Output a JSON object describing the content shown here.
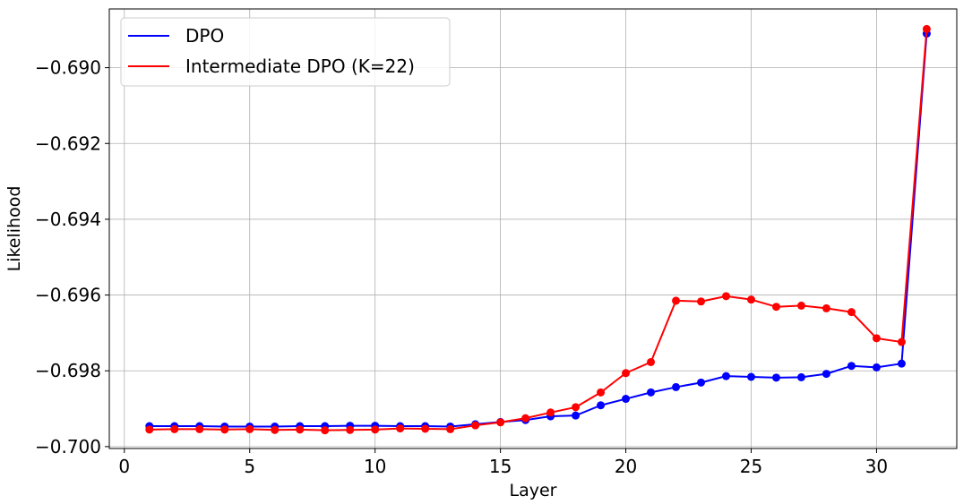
{
  "chart_data": {
    "type": "line",
    "title": "",
    "xlabel": "Layer",
    "ylabel": "Likelihood",
    "xlim": [
      -0.6,
      33.2
    ],
    "ylim": [
      -0.70005,
      -0.68845
    ],
    "xticks": [
      0,
      5,
      10,
      15,
      20,
      25,
      30
    ],
    "xtick_labels": [
      "0",
      "5",
      "10",
      "15",
      "20",
      "25",
      "30"
    ],
    "yticks": [
      -0.7,
      -0.698,
      -0.696,
      -0.694,
      -0.692,
      -0.69
    ],
    "ytick_labels": [
      "−0.700",
      "−0.698",
      "−0.696",
      "−0.694",
      "−0.692",
      "−0.690"
    ],
    "grid": true,
    "legend_position": "top-left",
    "x": [
      1,
      2,
      3,
      4,
      5,
      6,
      7,
      8,
      9,
      10,
      11,
      12,
      13,
      14,
      15,
      16,
      17,
      18,
      19,
      20,
      21,
      22,
      23,
      24,
      25,
      26,
      27,
      28,
      29,
      30,
      31,
      32
    ],
    "series": [
      {
        "name": "DPO",
        "color": "#0000ff",
        "values": [
          -0.69946,
          -0.69946,
          -0.69946,
          -0.69947,
          -0.69947,
          -0.69947,
          -0.69946,
          -0.69946,
          -0.69945,
          -0.69945,
          -0.69946,
          -0.69946,
          -0.69947,
          -0.69941,
          -0.69935,
          -0.6993,
          -0.6992,
          -0.69918,
          -0.69891,
          -0.69874,
          -0.69857,
          -0.69843,
          -0.69831,
          -0.69814,
          -0.69816,
          -0.69818,
          -0.69817,
          -0.69808,
          -0.69787,
          -0.69791,
          -0.69781,
          -0.6891
        ]
      },
      {
        "name": "Intermediate DPO (K=22)",
        "color": "#ff0000",
        "values": [
          -0.69955,
          -0.69954,
          -0.69954,
          -0.69955,
          -0.69954,
          -0.69956,
          -0.69955,
          -0.69957,
          -0.69956,
          -0.69955,
          -0.69952,
          -0.69953,
          -0.69954,
          -0.69944,
          -0.69936,
          -0.69925,
          -0.6991,
          -0.69896,
          -0.69857,
          -0.69806,
          -0.69777,
          -0.69615,
          -0.69617,
          -0.69603,
          -0.69612,
          -0.69631,
          -0.69628,
          -0.69635,
          -0.69645,
          -0.69714,
          -0.69724,
          -0.68898
        ]
      }
    ]
  }
}
